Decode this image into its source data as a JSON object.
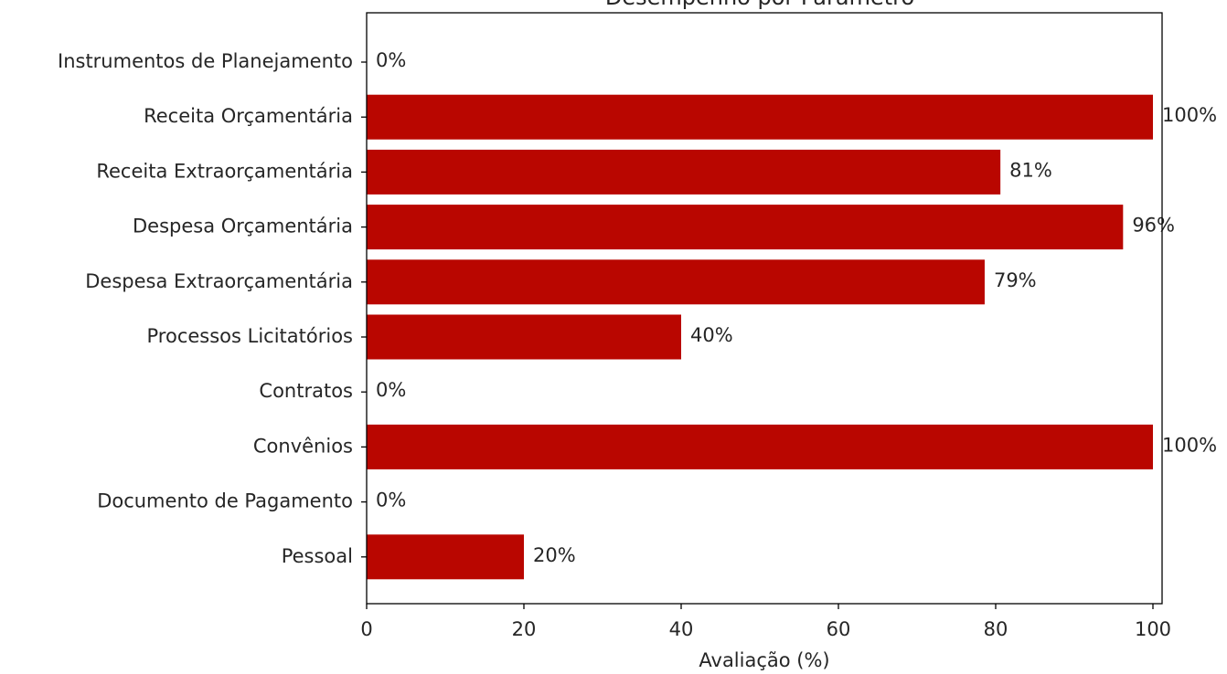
{
  "chart_data": {
    "type": "bar",
    "orientation": "horizontal",
    "title": "Desempenho por Parâmetro",
    "xlabel": "Avaliação (%)",
    "ylabel": "",
    "xlim": [
      0,
      101
    ],
    "xticks": [
      0,
      20,
      40,
      60,
      80,
      100
    ],
    "grid": false,
    "bar_color": "#b90600",
    "categories": [
      "Instrumentos de Planejamento",
      "Receita Orçamentária",
      "Receita Extraorçamentária",
      "Despesa Orçamentária",
      "Despesa Extraorçamentária",
      "Processos Licitatórios",
      "Contratos",
      "Convênios",
      "Documento de Pagamento",
      "Pessoal"
    ],
    "values": [
      0,
      100,
      80.6,
      96.2,
      78.6,
      40,
      0,
      100,
      0,
      20
    ],
    "data_labels": [
      "0%",
      "100%",
      "81%",
      "96%",
      "79%",
      "40%",
      "0%",
      "100%",
      "0%",
      "20%"
    ]
  }
}
